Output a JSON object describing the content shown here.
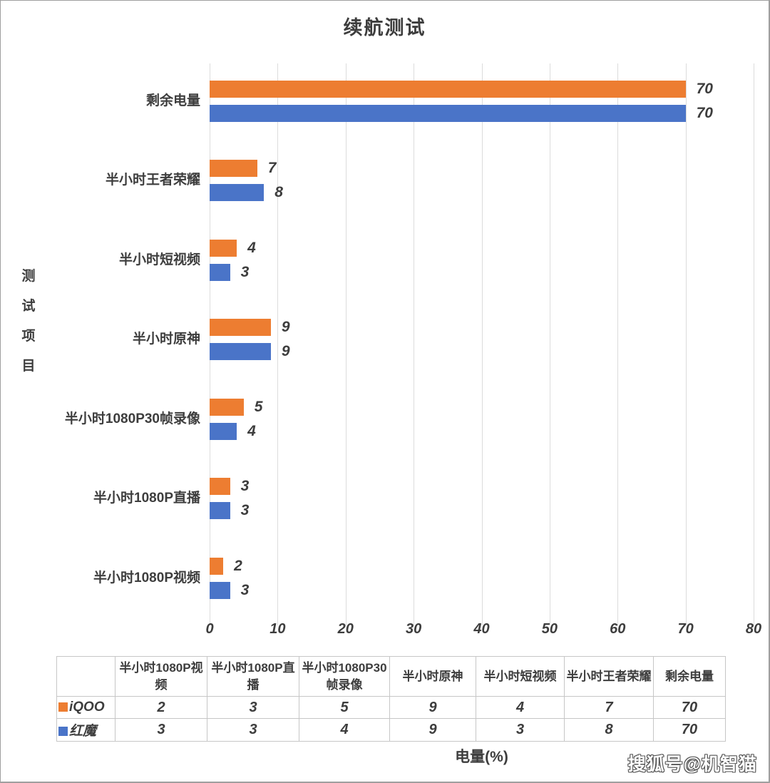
{
  "title": "续航测试",
  "watermark": "搜狐号@机智猫",
  "colors": {
    "series_iqoo": "#ED7D31",
    "series_hongmo": "#4A74C8",
    "text": "#3D3D3D",
    "gridline": "#DCDCDC",
    "table_border": "#C6C6C6"
  },
  "chart_data": {
    "type": "bar",
    "orientation": "horizontal",
    "title": "续航测试",
    "xlabel": "电量(%)",
    "ylabel": "测试项目",
    "xlim": [
      0,
      80
    ],
    "x_ticks": [
      0,
      10,
      20,
      30,
      40,
      50,
      60,
      70,
      80
    ],
    "grid": true,
    "value_labels": true,
    "legend_position": "data-table-left",
    "categories": [
      "剩余电量",
      "半小时王者荣耀",
      "半小时短视频",
      "半小时原神",
      "半小时1080P30帧录像",
      "半小时1080P直播",
      "半小时1080P视频"
    ],
    "series": [
      {
        "name": "iQOO",
        "color": "#ED7D31",
        "values": [
          70,
          7,
          4,
          9,
          5,
          3,
          2
        ]
      },
      {
        "name": "红魔",
        "color": "#4A74C8",
        "values": [
          70,
          8,
          3,
          9,
          4,
          3,
          3
        ]
      }
    ]
  },
  "data_table": {
    "columns": [
      "半小时1080P视频",
      "半小时1080P直播",
      "半小时1080P30帧录像",
      "半小时原神",
      "半小时短视频",
      "半小时王者荣耀",
      "剩余电量"
    ],
    "rows": [
      {
        "name": "iQOO",
        "color": "#ED7D31",
        "values": [
          2,
          3,
          5,
          9,
          4,
          7,
          70
        ]
      },
      {
        "name": "红魔",
        "color": "#4A74C8",
        "values": [
          3,
          3,
          4,
          9,
          3,
          8,
          70
        ]
      }
    ]
  }
}
